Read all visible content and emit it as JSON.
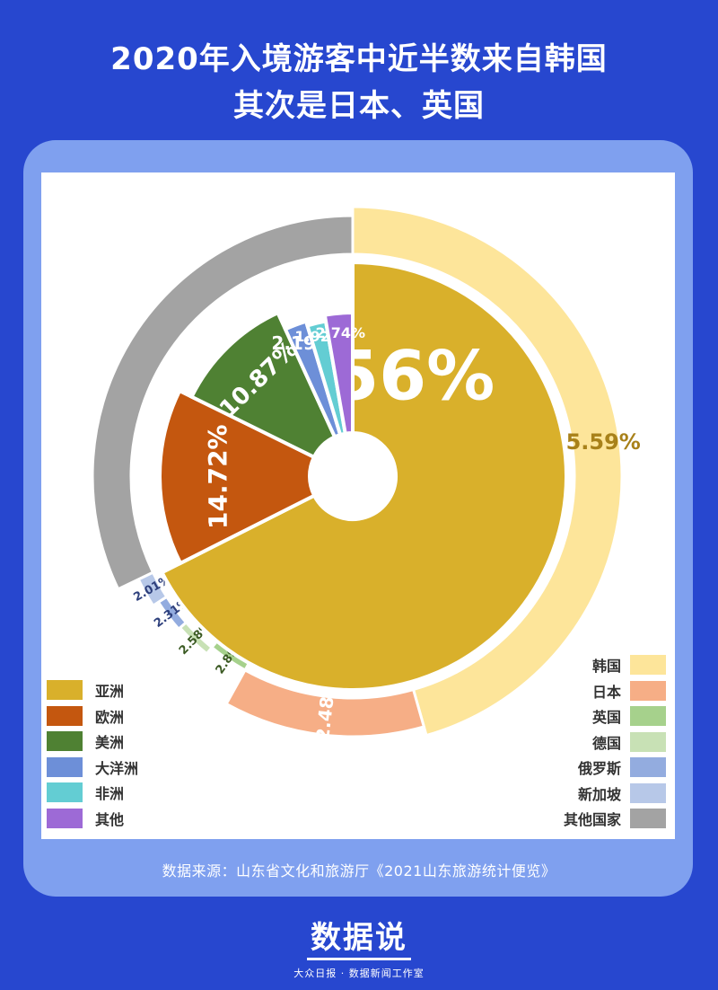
{
  "title": {
    "line1": "2020年入境游客中近半数来自韩国",
    "line2": "其次是日本、英国"
  },
  "chart_data": [
    {
      "type": "pie",
      "ring": "inner",
      "categories": [
        "亚洲",
        "欧洲",
        "美洲",
        "大洋洲",
        "非洲",
        "其他"
      ],
      "values": [
        67.56,
        14.72,
        10.87,
        2.19,
        1.92,
        2.74
      ],
      "labels": [
        "67.56%",
        "14.72%",
        "10.87%",
        "2.19%",
        "1.92%",
        "2.74%"
      ],
      "colors": [
        "#d9b02b",
        "#c4570f",
        "#4f8133",
        "#6d8fd8",
        "#63cdd3",
        "#9d6ad6"
      ]
    },
    {
      "type": "pie",
      "ring": "outer",
      "categories": [
        "韩国",
        "日本",
        "英国",
        "德国",
        "俄罗斯",
        "新加坡",
        "其他国家"
      ],
      "values": [
        45.59,
        12.48,
        2.89,
        2.58,
        2.31,
        2.01,
        32.14
      ],
      "labels": [
        "45.59%",
        "12.48%",
        "2.89%",
        "2.58%",
        "2.31%",
        "2.01%",
        ""
      ],
      "colors": [
        "#fde59a",
        "#f6ae86",
        "#a6d18c",
        "#c8e1b5",
        "#93acdf",
        "#b7c8e8",
        "#a3a3a3"
      ]
    }
  ],
  "legend_left": [
    {
      "label": "亚洲",
      "color": "#d9b02b"
    },
    {
      "label": "欧洲",
      "color": "#c4570f"
    },
    {
      "label": "美洲",
      "color": "#4f8133"
    },
    {
      "label": "大洋洲",
      "color": "#6d8fd8"
    },
    {
      "label": "非洲",
      "color": "#63cdd3"
    },
    {
      "label": "其他",
      "color": "#9d6ad6"
    }
  ],
  "legend_right": [
    {
      "label": "韩国",
      "color": "#fde59a"
    },
    {
      "label": "日本",
      "color": "#f6ae86"
    },
    {
      "label": "英国",
      "color": "#a6d18c"
    },
    {
      "label": "德国",
      "color": "#c8e1b5"
    },
    {
      "label": "俄罗斯",
      "color": "#93acdf"
    },
    {
      "label": "新加坡",
      "color": "#b7c8e8"
    },
    {
      "label": "其他国家",
      "color": "#a3a3a3"
    }
  ],
  "source": "数据来源：山东省文化和旅游厅《2021山东旅游统计便览》",
  "brand": {
    "logo": "数据说",
    "subtitle": "大众日报 · 数据新闻工作室"
  },
  "colors": {
    "background": "#2747cf",
    "panel": "#7fa0ef"
  }
}
